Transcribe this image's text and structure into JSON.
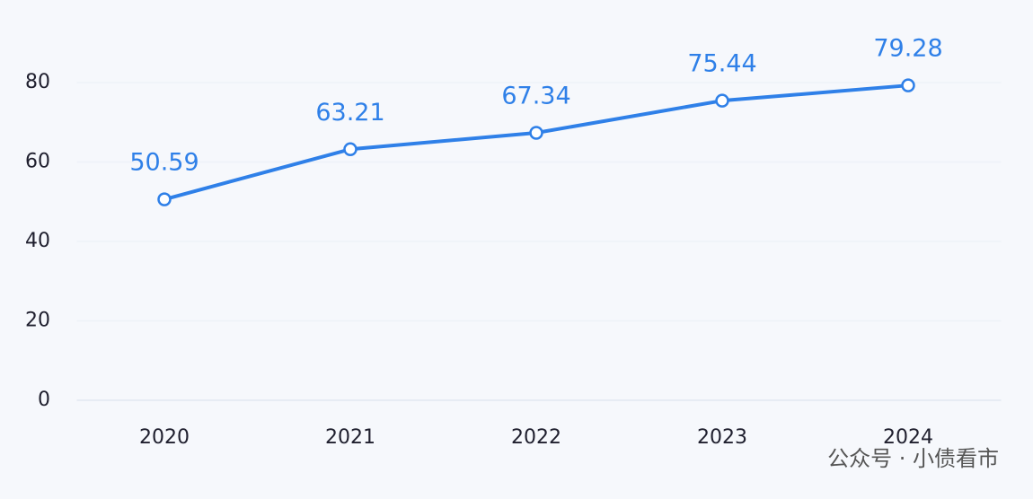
{
  "chart_data": {
    "type": "line",
    "categories": [
      "2020",
      "2021",
      "2022",
      "2023",
      "2024"
    ],
    "values": [
      50.59,
      63.21,
      67.34,
      75.44,
      79.28
    ],
    "color": "#2f80e8",
    "ylim": [
      0,
      80
    ],
    "yticks": [
      0,
      20,
      40,
      60,
      80
    ],
    "grid": true,
    "watermark": "公众号 · 小债看市"
  }
}
